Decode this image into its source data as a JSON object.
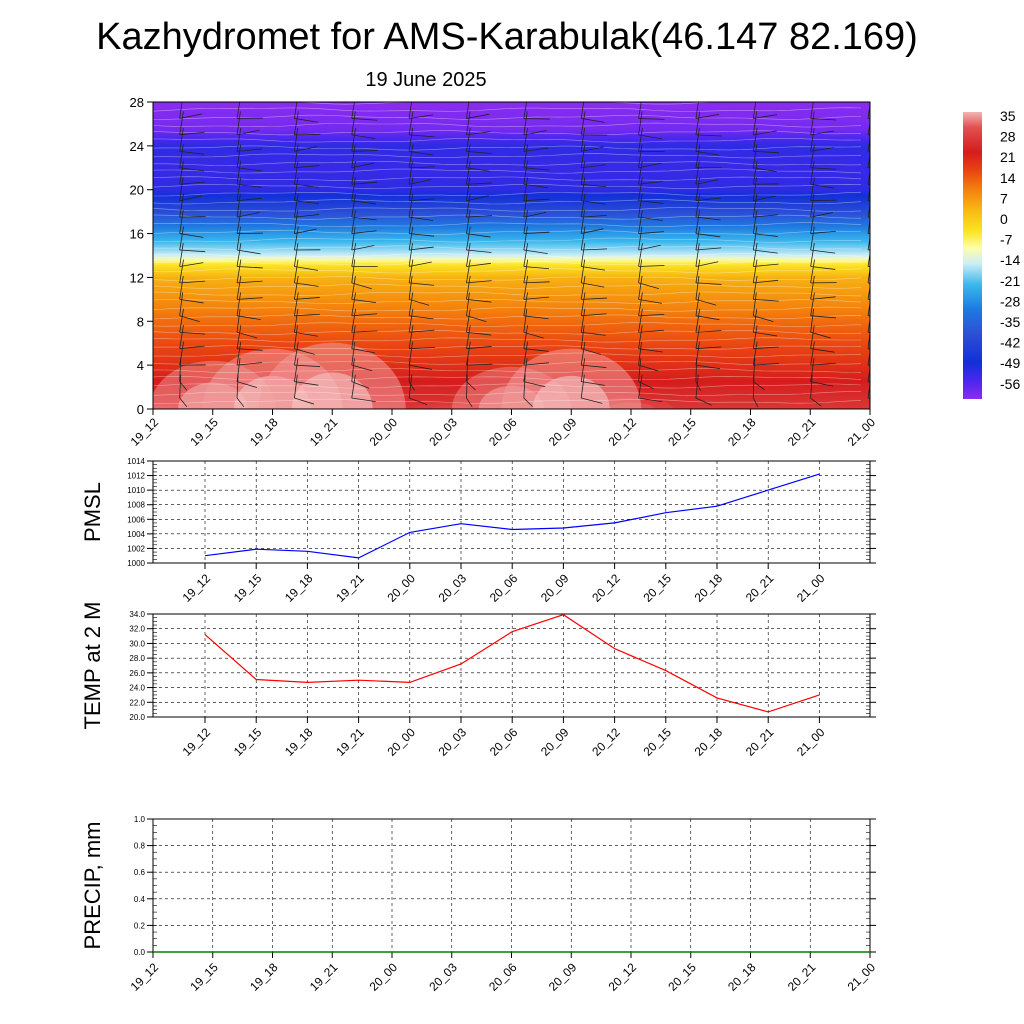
{
  "title": "Kazhydromet for AMS-Karabulak(46.147 82.169)",
  "subtitle": "19 June 2025",
  "time_labels": [
    "19_12",
    "19_15",
    "19_18",
    "19_21",
    "20_00",
    "20_03",
    "20_06",
    "20_09",
    "20_12",
    "20_15",
    "20_18",
    "20_21",
    "21_00"
  ],
  "chart_data": [
    {
      "type": "heatmap",
      "name": "temperature-cross-section",
      "x": [
        "19_12",
        "19_15",
        "19_18",
        "19_21",
        "20_00",
        "20_03",
        "20_06",
        "20_09",
        "20_12",
        "20_15",
        "20_18",
        "20_21",
        "21_00"
      ],
      "ylim": [
        0,
        28
      ],
      "yticks": [
        0,
        4,
        8,
        12,
        16,
        20,
        24,
        28
      ],
      "colorbar": {
        "labels": [
          "35",
          "28",
          "21",
          "14",
          "7",
          "0",
          "-7",
          "-14",
          "-21",
          "-28",
          "-35",
          "-42",
          "-49",
          "-56"
        ],
        "stops": [
          {
            "v": 35,
            "color": "#f3b4b4"
          },
          {
            "v": 30,
            "color": "#e25050"
          },
          {
            "v": 22,
            "color": "#d51c1c"
          },
          {
            "v": 16,
            "color": "#ea4412"
          },
          {
            "v": 10,
            "color": "#f3800d"
          },
          {
            "v": 3,
            "color": "#f8ba12"
          },
          {
            "v": -4,
            "color": "#fce626"
          },
          {
            "v": -9,
            "color": "#fffea8"
          },
          {
            "v": -14,
            "color": "#cfeef6"
          },
          {
            "v": -21,
            "color": "#3ab7ed"
          },
          {
            "v": -29,
            "color": "#1d7ae0"
          },
          {
            "v": -37,
            "color": "#2c4fd6"
          },
          {
            "v": -46,
            "color": "#1230d8"
          },
          {
            "v": -52,
            "color": "#4a26ee"
          },
          {
            "v": -58,
            "color": "#8b2cf0"
          }
        ]
      },
      "profile": {
        "heights": [
          0,
          2,
          4,
          8,
          12,
          13.2,
          14,
          16,
          18,
          20,
          22,
          24,
          25.5,
          28
        ],
        "temps": [
          26,
          23,
          19,
          12,
          4,
          -4,
          -14,
          -25,
          -38,
          -49,
          -50,
          -49,
          -56,
          -58
        ]
      },
      "surface_anomaly": [
        1,
        8,
        10,
        11,
        0,
        1,
        7,
        10,
        2,
        0,
        0,
        0,
        0
      ]
    },
    {
      "type": "line",
      "name": "pmsl",
      "ylabel": "PMSL",
      "ylim": [
        1000,
        1014
      ],
      "yticks": [
        "1000",
        "1002",
        "1004",
        "1006",
        "1008",
        "1010",
        "1012",
        "1014"
      ],
      "categories": [
        "19_12",
        "19_15",
        "19_18",
        "19_21",
        "20_00",
        "20_03",
        "20_06",
        "20_09",
        "20_12",
        "20_15",
        "20_18",
        "20_21",
        "21_00"
      ],
      "values": [
        1001.0,
        1001.9,
        1001.6,
        1000.7,
        1004.2,
        1005.4,
        1004.6,
        1004.8,
        1005.5,
        1006.9,
        1007.8,
        1010.0,
        1012.2
      ],
      "color": "#0000ff"
    },
    {
      "type": "line",
      "name": "temp-2m",
      "ylabel": "TEMP at 2 M",
      "ylim": [
        20,
        34
      ],
      "yticks": [
        "20.0",
        "22.0",
        "24.0",
        "26.0",
        "28.0",
        "30.0",
        "32.0",
        "34.0"
      ],
      "categories": [
        "19_12",
        "19_15",
        "19_18",
        "19_21",
        "20_00",
        "20_03",
        "20_06",
        "20_09",
        "20_12",
        "20_15",
        "20_18",
        "20_21",
        "21_00"
      ],
      "values": [
        31.2,
        25.1,
        24.7,
        25.0,
        24.7,
        27.2,
        31.6,
        33.9,
        29.3,
        26.3,
        22.6,
        20.7,
        23.0
      ],
      "color": "#ff0000"
    },
    {
      "type": "line",
      "name": "precip",
      "ylabel": "PRECIP, mm",
      "ylim": [
        0,
        1
      ],
      "yticks": [
        "0.0",
        "0.2",
        "0.4",
        "0.6",
        "0.8",
        "1.0"
      ],
      "categories": [
        "19_12",
        "19_15",
        "19_18",
        "19_21",
        "20_00",
        "20_03",
        "20_06",
        "20_09",
        "20_12",
        "20_15",
        "20_18",
        "20_21",
        "21_00"
      ],
      "values": [
        0,
        0,
        0,
        0,
        0,
        0,
        0,
        0,
        0,
        0,
        0,
        0,
        0
      ],
      "color": "#008000"
    }
  ]
}
